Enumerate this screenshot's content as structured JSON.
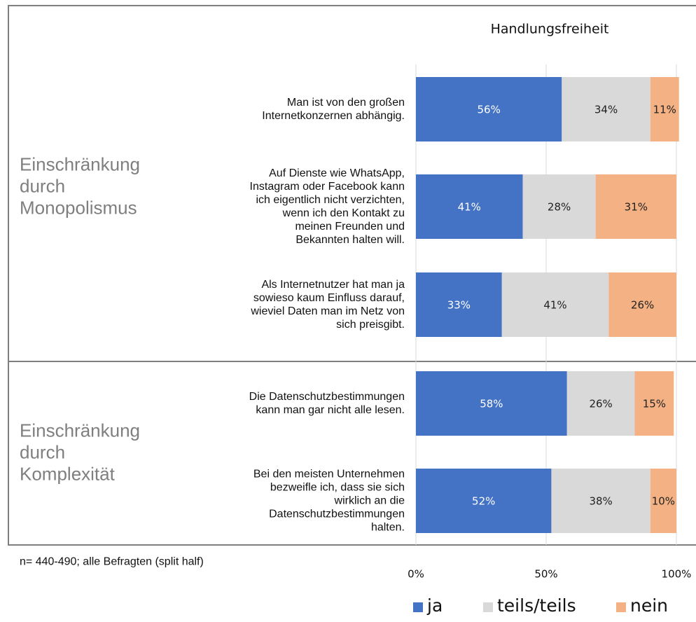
{
  "chart_data": {
    "type": "stacked_bar_horizontal",
    "title": "Handlungsfreiheit",
    "categories": [
      "Man ist von den großen\nInternetkonzernen abhängig.",
      "Auf Dienste wie WhatsApp,\nInstagram oder Facebook kann\nich eigentlich nicht verzichten,\nwenn ich den Kontakt zu\nmeinen Freunden und\nBekannten halten will.",
      "Als Internetnutzer hat man ja\nsowieso kaum Einfluss darauf,\nwieviel Daten man im Netz von\nsich preisgibt.",
      "Die Datenschutzbestimmungen\nkann man gar nicht alle lesen.",
      "Bei den meisten Unternehmen\nbezweifle ich, dass sie sich\nwirklich an die\nDatenschutzbestimmungen\nhalten."
    ],
    "groups": [
      "Einschränkung\ndurch\nMonopolismus",
      "Einschränkung\ndurch\nKomplexität"
    ],
    "series": [
      {
        "name": "ja",
        "color": "#4472c4",
        "values": [
          56,
          41,
          33,
          58,
          52
        ],
        "value_labels": [
          "56%",
          "41%",
          "33%",
          "58%",
          "52%"
        ]
      },
      {
        "name": "teils/teils",
        "color": "#d9d9d9",
        "values": [
          34,
          28,
          41,
          26,
          38
        ],
        "value_labels": [
          "34%",
          "28%",
          "41%",
          "26%",
          "38%"
        ]
      },
      {
        "name": "nein",
        "color": "#f4b183",
        "values": [
          11,
          31,
          26,
          15,
          10
        ],
        "value_labels": [
          "11%",
          "31%",
          "26%",
          "15%",
          "10%"
        ]
      }
    ],
    "xlim": [
      0,
      100
    ],
    "xticks": [
      {
        "value": 0,
        "label": "0%"
      },
      {
        "value": 50,
        "label": "50%"
      },
      {
        "value": 100,
        "label": "100%"
      }
    ],
    "grid": true,
    "legend": "bottom",
    "footnote": "n= 440-490; alle Befragten (split half)"
  }
}
